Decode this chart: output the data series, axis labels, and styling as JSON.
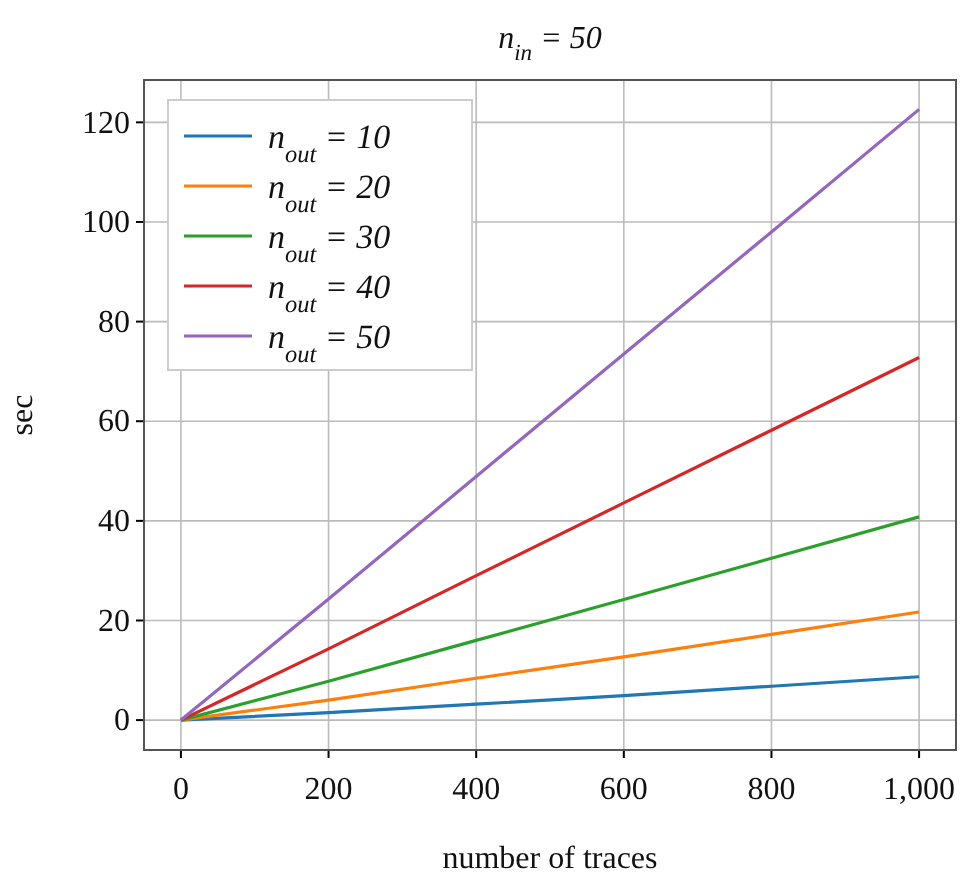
{
  "chart_data": {
    "type": "line",
    "title": "n$_{in}$ = 50",
    "xlabel": "number of traces",
    "ylabel": "sec",
    "x": [
      0,
      200,
      400,
      600,
      800,
      1000
    ],
    "series": [
      {
        "name": "n$_{out}$ = 10",
        "color": "#1f77b4",
        "values": [
          0,
          1.5,
          3.2,
          4.9,
          6.8,
          8.7
        ]
      },
      {
        "name": "n$_{out}$ = 20",
        "color": "#ff7f0e",
        "values": [
          0,
          4,
          8.4,
          12.7,
          17.2,
          21.7
        ]
      },
      {
        "name": "n$_{out}$ = 30",
        "color": "#2ca02c",
        "values": [
          0,
          7.8,
          16,
          24.2,
          32.5,
          40.8
        ]
      },
      {
        "name": "n$_{out}$ = 40",
        "color": "#d62728",
        "values": [
          0,
          14.3,
          29,
          43.6,
          58.2,
          72.8
        ]
      },
      {
        "name": "n$_{out}$ = 50",
        "color": "#9467bd",
        "values": [
          0,
          24.3,
          48.9,
          73.5,
          98,
          122.6
        ]
      }
    ],
    "xlim": [
      -50,
      1050
    ],
    "xticks": [
      0,
      200,
      400,
      600,
      800,
      {
        "value": 1000,
        "label": "1,000"
      }
    ],
    "ylim": [
      -6,
      128.5
    ],
    "yticks": [
      0,
      20,
      40,
      60,
      80,
      100,
      120
    ],
    "grid": true,
    "legend": "top left",
    "marker": "none",
    "line_style": "solid"
  }
}
